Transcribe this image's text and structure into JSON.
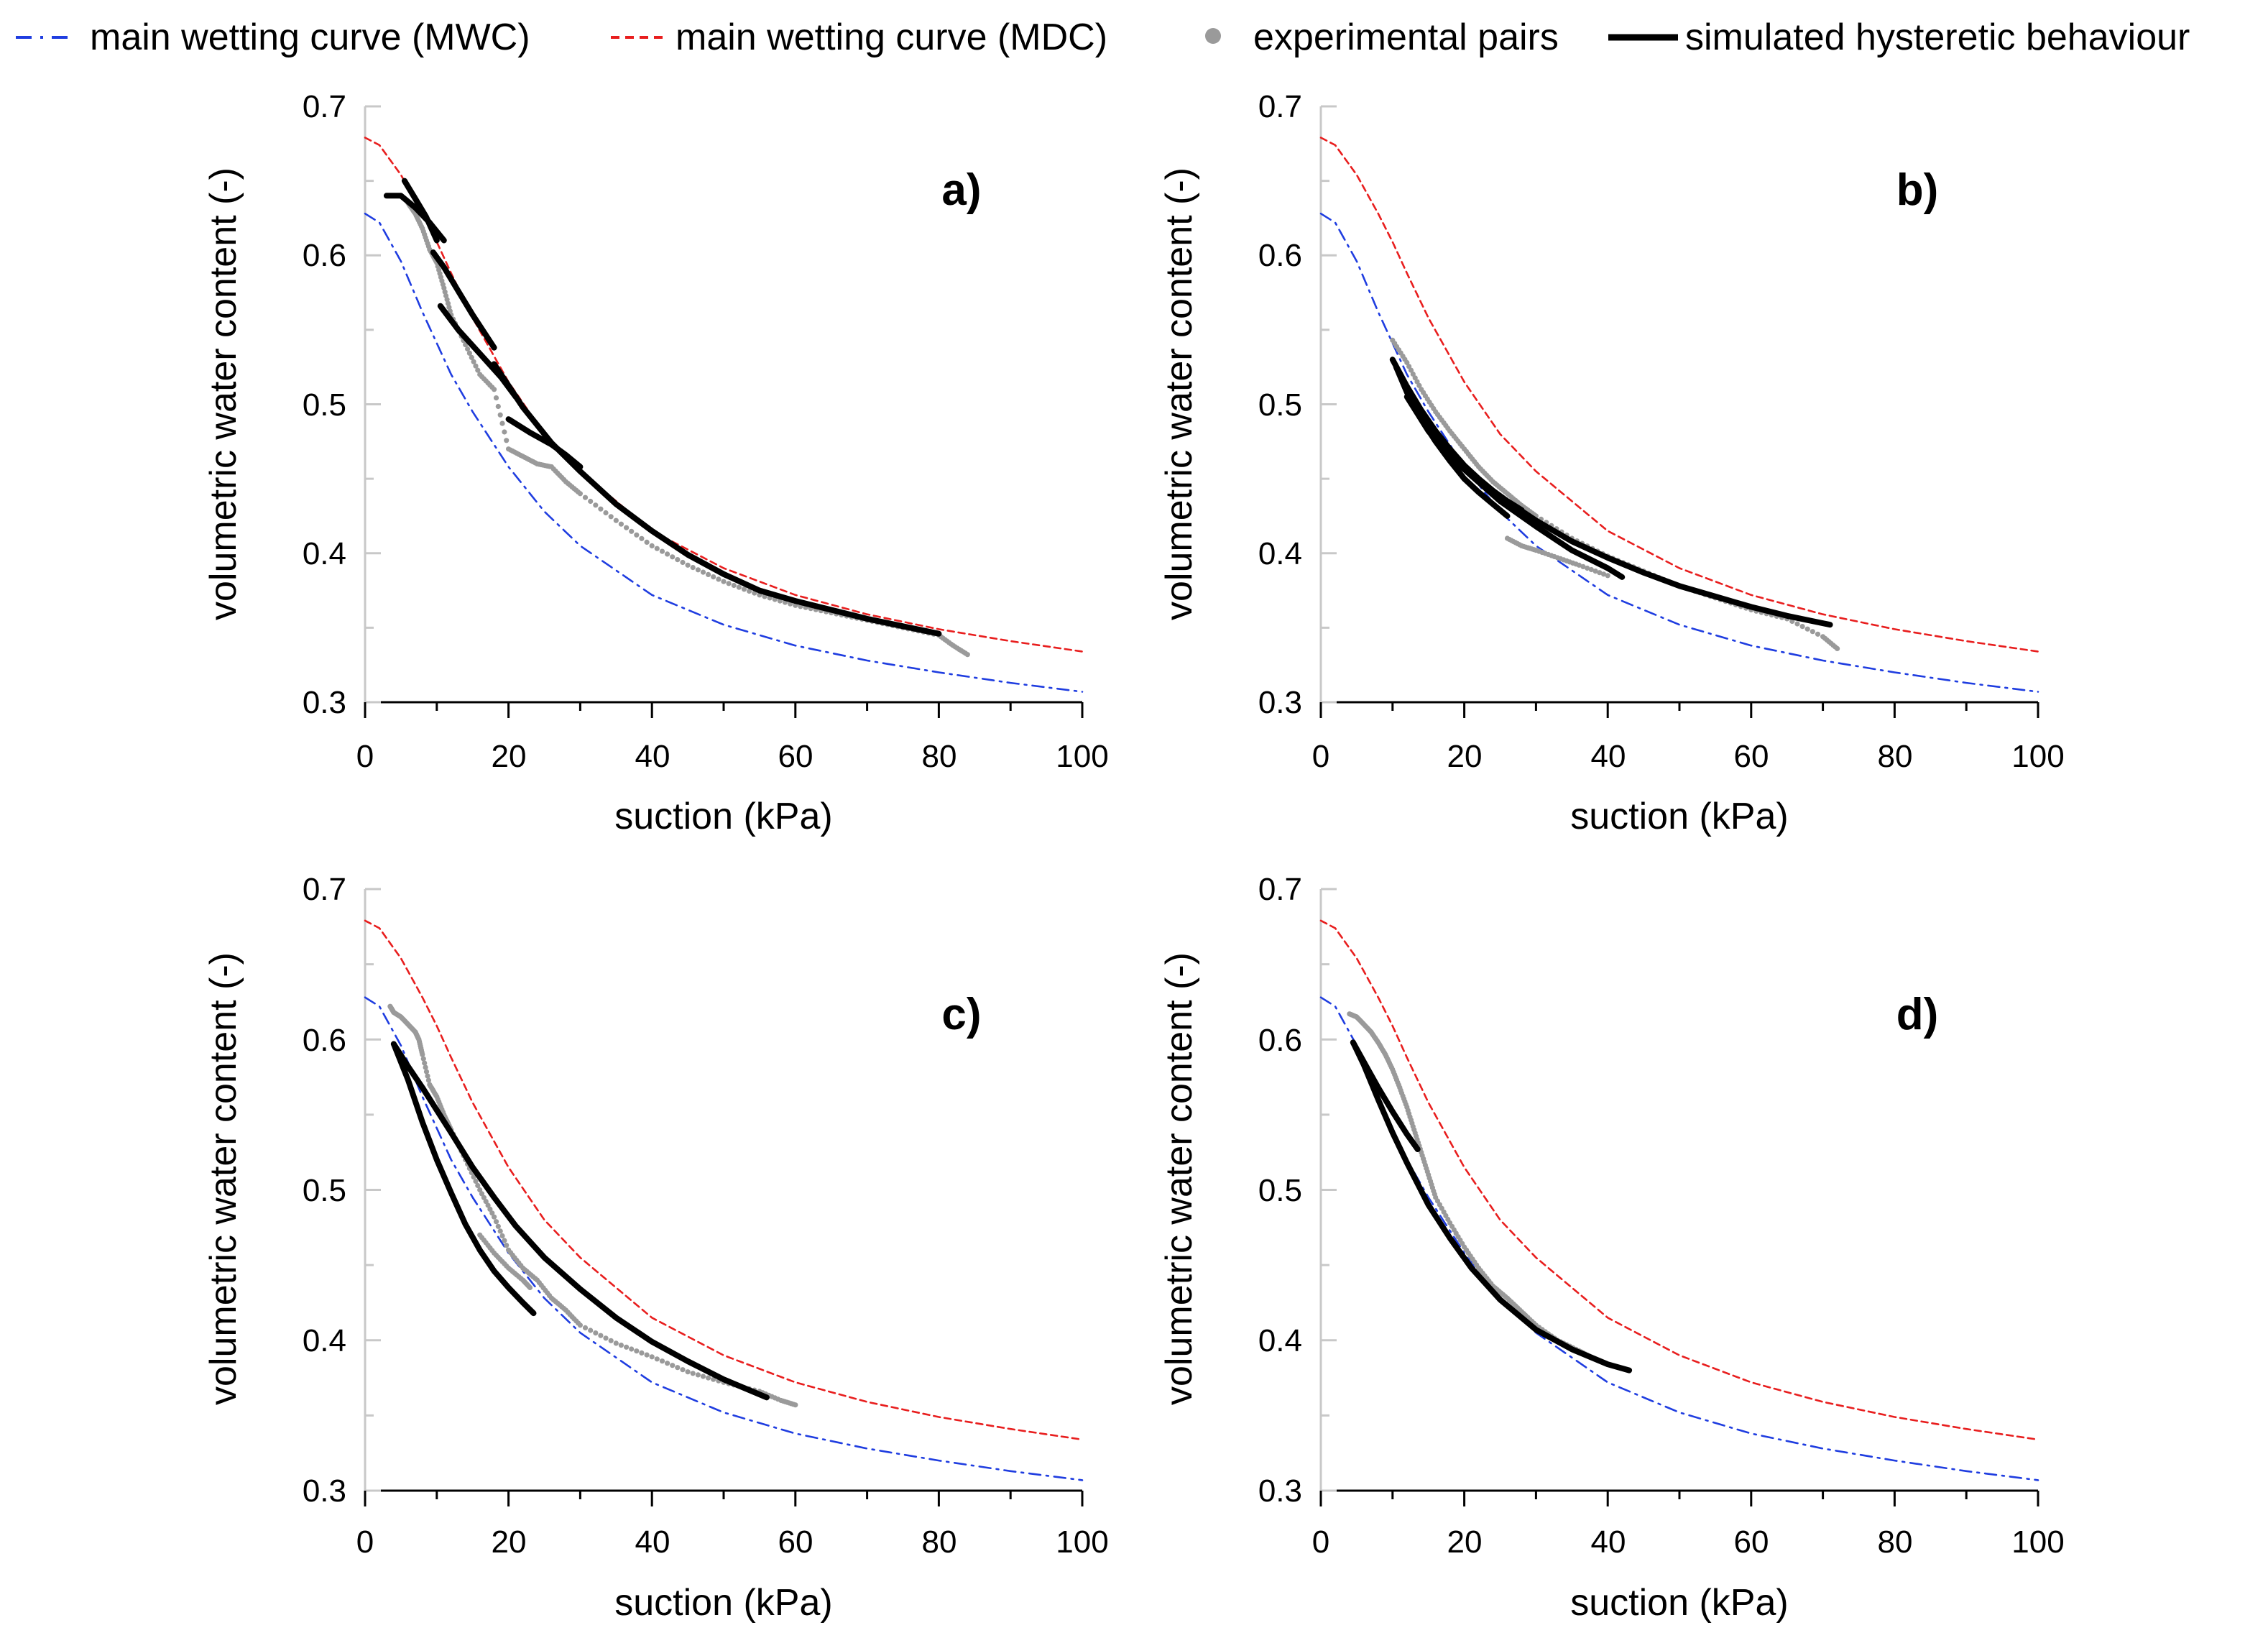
{
  "legend": {
    "mwc_label": "main wetting curve (MWC)",
    "mdc_label": "main wetting curve (MDC)",
    "exp_label": "experimental pairs",
    "sim_label": "simulated hysteretic behaviour"
  },
  "colors": {
    "mwc": "#1f3de0",
    "mdc": "#e81e1e",
    "experimental": "#9a9a9a",
    "simulated": "#000000",
    "axis": "#c8c8c8"
  },
  "chart_data": [
    {
      "type": "line",
      "panel": "a)",
      "xlabel": "suction (kPa)",
      "ylabel": "volumetric water content (-)",
      "xlim": [
        0,
        100
      ],
      "ylim": [
        0.3,
        0.7
      ],
      "xticks": [
        "0",
        "20",
        "40",
        "60",
        "80",
        "100"
      ],
      "yticks": [
        "0.3",
        "0.4",
        "0.5",
        "0.6",
        "0.7"
      ],
      "series": [
        {
          "name": "main wetting curve (MWC)",
          "kind": "mwc",
          "x": [
            0,
            2,
            5,
            8,
            10,
            12,
            15,
            20,
            25,
            30,
            40,
            50,
            60,
            70,
            80,
            90,
            100
          ],
          "y": [
            0.628,
            0.622,
            0.596,
            0.562,
            0.541,
            0.52,
            0.495,
            0.458,
            0.428,
            0.405,
            0.372,
            0.352,
            0.338,
            0.328,
            0.32,
            0.313,
            0.307
          ]
        },
        {
          "name": "main wetting curve (MDC)",
          "kind": "mdc",
          "x": [
            0,
            2,
            5,
            8,
            10,
            12,
            15,
            20,
            25,
            30,
            40,
            50,
            60,
            70,
            80,
            90,
            100
          ],
          "y": [
            0.679,
            0.674,
            0.654,
            0.628,
            0.609,
            0.588,
            0.558,
            0.515,
            0.48,
            0.455,
            0.415,
            0.39,
            0.372,
            0.359,
            0.349,
            0.341,
            0.334
          ]
        },
        {
          "name": "experimental pairs",
          "kind": "exp",
          "x": [
            6,
            7,
            8,
            9,
            10,
            11,
            12,
            14,
            16,
            18,
            20,
            22,
            24,
            26,
            28,
            30,
            35,
            40,
            45,
            50,
            55,
            60,
            65,
            70,
            75,
            80,
            82,
            84
          ],
          "y": [
            0.635,
            0.628,
            0.618,
            0.604,
            0.595,
            0.578,
            0.56,
            0.54,
            0.52,
            0.51,
            0.47,
            0.465,
            0.46,
            0.458,
            0.448,
            0.44,
            0.422,
            0.405,
            0.392,
            0.381,
            0.372,
            0.365,
            0.36,
            0.355,
            0.35,
            0.345,
            0.338,
            0.332
          ]
        },
        {
          "name": "simulated hysteretic behaviour",
          "kind": "sim",
          "x": [
            3,
            5,
            7,
            9,
            11
          ],
          "y": [
            0.64,
            0.64,
            0.632,
            0.622,
            0.61
          ]
        },
        {
          "name": "simulated hysteretic behaviour",
          "kind": "sim",
          "x": [
            5.5,
            7,
            8.5,
            10
          ],
          "y": [
            0.65,
            0.638,
            0.626,
            0.61
          ]
        },
        {
          "name": "simulated hysteretic behaviour",
          "kind": "sim",
          "x": [
            9.5,
            11,
            13,
            15,
            18
          ],
          "y": [
            0.602,
            0.592,
            0.576,
            0.56,
            0.538
          ]
        },
        {
          "name": "simulated hysteretic behaviour",
          "kind": "sim",
          "x": [
            10.5,
            13,
            16,
            19,
            21
          ],
          "y": [
            0.566,
            0.55,
            0.534,
            0.518,
            0.505
          ]
        },
        {
          "name": "simulated hysteretic behaviour",
          "kind": "sim",
          "x": [
            20,
            23,
            26,
            28,
            30
          ],
          "y": [
            0.49,
            0.481,
            0.473,
            0.466,
            0.458
          ]
        },
        {
          "name": "simulated hysteretic behaviour",
          "kind": "sim",
          "x": [
            18,
            22,
            26,
            30,
            35,
            40,
            45,
            50,
            55,
            60,
            65,
            70,
            75,
            80
          ],
          "y": [
            0.527,
            0.498,
            0.474,
            0.455,
            0.433,
            0.415,
            0.399,
            0.386,
            0.375,
            0.368,
            0.362,
            0.356,
            0.351,
            0.346
          ]
        }
      ]
    },
    {
      "type": "line",
      "panel": "b)",
      "xlabel": "suction (kPa)",
      "ylabel": "volumetric water content (-)",
      "xlim": [
        0,
        100
      ],
      "ylim": [
        0.3,
        0.7
      ],
      "xticks": [
        "0",
        "20",
        "40",
        "60",
        "80",
        "100"
      ],
      "yticks": [
        "0.3",
        "0.4",
        "0.5",
        "0.6",
        "0.7"
      ],
      "series": [
        {
          "name": "main wetting curve (MWC)",
          "kind": "mwc",
          "x": [
            0,
            2,
            5,
            8,
            10,
            12,
            15,
            20,
            25,
            30,
            40,
            50,
            60,
            70,
            80,
            90,
            100
          ],
          "y": [
            0.628,
            0.622,
            0.596,
            0.562,
            0.541,
            0.52,
            0.495,
            0.458,
            0.428,
            0.405,
            0.372,
            0.352,
            0.338,
            0.328,
            0.32,
            0.313,
            0.307
          ]
        },
        {
          "name": "main wetting curve (MDC)",
          "kind": "mdc",
          "x": [
            0,
            2,
            5,
            8,
            10,
            12,
            15,
            20,
            25,
            30,
            40,
            50,
            60,
            70,
            80,
            90,
            100
          ],
          "y": [
            0.679,
            0.674,
            0.654,
            0.628,
            0.609,
            0.588,
            0.558,
            0.515,
            0.48,
            0.455,
            0.415,
            0.39,
            0.372,
            0.359,
            0.349,
            0.341,
            0.334
          ]
        },
        {
          "name": "experimental pairs",
          "kind": "exp",
          "x": [
            10,
            12,
            14,
            16,
            18,
            20,
            22,
            24,
            26,
            28,
            30,
            35,
            40,
            45,
            50,
            55,
            60,
            65,
            70,
            72
          ],
          "y": [
            0.543,
            0.528,
            0.51,
            0.495,
            0.482,
            0.47,
            0.458,
            0.448,
            0.44,
            0.432,
            0.425,
            0.41,
            0.398,
            0.388,
            0.378,
            0.37,
            0.362,
            0.356,
            0.344,
            0.336
          ]
        },
        {
          "name": "experimental pairs",
          "kind": "exp",
          "x": [
            26,
            28,
            30,
            33,
            36,
            40
          ],
          "y": [
            0.41,
            0.405,
            0.402,
            0.397,
            0.392,
            0.385
          ]
        },
        {
          "name": "simulated hysteretic behaviour",
          "kind": "sim",
          "x": [
            10,
            12,
            14,
            16,
            18,
            20,
            22,
            24,
            26,
            28
          ],
          "y": [
            0.53,
            0.512,
            0.496,
            0.482,
            0.47,
            0.459,
            0.45,
            0.442,
            0.435,
            0.429
          ]
        },
        {
          "name": "simulated hysteretic behaviour",
          "kind": "sim",
          "x": [
            10.5,
            12,
            14,
            16,
            18,
            20,
            22,
            24,
            26
          ],
          "y": [
            0.525,
            0.508,
            0.49,
            0.475,
            0.462,
            0.45,
            0.441,
            0.433,
            0.425
          ]
        },
        {
          "name": "simulated hysteretic behaviour",
          "kind": "sim",
          "x": [
            12,
            15,
            18,
            21,
            25,
            30,
            35,
            40,
            42
          ],
          "y": [
            0.51,
            0.488,
            0.468,
            0.452,
            0.435,
            0.418,
            0.402,
            0.39,
            0.384
          ]
        },
        {
          "name": "simulated hysteretic behaviour",
          "kind": "sim",
          "x": [
            12,
            15,
            18,
            21,
            25,
            30,
            35,
            40,
            45,
            50,
            55,
            60,
            65,
            71
          ],
          "y": [
            0.505,
            0.482,
            0.465,
            0.452,
            0.438,
            0.422,
            0.408,
            0.397,
            0.387,
            0.378,
            0.371,
            0.364,
            0.358,
            0.352
          ]
        }
      ]
    },
    {
      "type": "line",
      "panel": "c)",
      "xlabel": "suction (kPa)",
      "ylabel": "volumetric water content (-)",
      "xlim": [
        0,
        100
      ],
      "ylim": [
        0.3,
        0.7
      ],
      "xticks": [
        "0",
        "20",
        "40",
        "60",
        "80",
        "100"
      ],
      "yticks": [
        "0.3",
        "0.4",
        "0.5",
        "0.6",
        "0.7"
      ],
      "series": [
        {
          "name": "main wetting curve (MWC)",
          "kind": "mwc",
          "x": [
            0,
            2,
            5,
            8,
            10,
            12,
            15,
            20,
            25,
            30,
            40,
            50,
            60,
            70,
            80,
            90,
            100
          ],
          "y": [
            0.628,
            0.622,
            0.596,
            0.562,
            0.541,
            0.52,
            0.495,
            0.458,
            0.428,
            0.405,
            0.372,
            0.352,
            0.338,
            0.328,
            0.32,
            0.313,
            0.307
          ]
        },
        {
          "name": "main wetting curve (MDC)",
          "kind": "mdc",
          "x": [
            0,
            2,
            5,
            8,
            10,
            12,
            15,
            20,
            25,
            30,
            40,
            50,
            60,
            70,
            80,
            90,
            100
          ],
          "y": [
            0.679,
            0.674,
            0.654,
            0.628,
            0.609,
            0.588,
            0.558,
            0.515,
            0.48,
            0.455,
            0.415,
            0.39,
            0.372,
            0.359,
            0.349,
            0.341,
            0.334
          ]
        },
        {
          "name": "experimental pairs",
          "kind": "exp",
          "x": [
            3.5,
            4,
            5,
            6,
            7,
            7.5,
            8,
            9,
            10,
            11,
            12,
            14,
            16,
            18,
            20,
            22,
            24,
            26,
            28,
            30,
            35,
            40,
            45,
            50,
            55,
            58,
            60
          ],
          "y": [
            0.622,
            0.618,
            0.615,
            0.61,
            0.605,
            0.6,
            0.59,
            0.57,
            0.562,
            0.55,
            0.54,
            0.52,
            0.5,
            0.482,
            0.46,
            0.448,
            0.44,
            0.428,
            0.42,
            0.41,
            0.398,
            0.389,
            0.379,
            0.372,
            0.366,
            0.36,
            0.357
          ]
        },
        {
          "name": "experimental pairs",
          "kind": "exp",
          "x": [
            16,
            18,
            20,
            22,
            23
          ],
          "y": [
            0.47,
            0.458,
            0.448,
            0.44,
            0.435
          ]
        },
        {
          "name": "simulated hysteretic behaviour",
          "kind": "sim",
          "x": [
            4,
            6,
            8,
            10,
            12,
            14,
            16,
            18,
            20,
            22,
            23.5
          ],
          "y": [
            0.597,
            0.573,
            0.545,
            0.52,
            0.498,
            0.477,
            0.46,
            0.446,
            0.435,
            0.425,
            0.418
          ]
        },
        {
          "name": "simulated hysteretic behaviour",
          "kind": "sim",
          "x": [
            4,
            6,
            8,
            10,
            12,
            15,
            18,
            21,
            25,
            30,
            35,
            40,
            45,
            50,
            56
          ],
          "y": [
            0.597,
            0.582,
            0.568,
            0.553,
            0.538,
            0.515,
            0.495,
            0.476,
            0.455,
            0.434,
            0.415,
            0.399,
            0.386,
            0.374,
            0.362
          ]
        }
      ]
    },
    {
      "type": "line",
      "panel": "d)",
      "xlabel": "suction (kPa)",
      "ylabel": "volumetric water content (-)",
      "xlim": [
        0,
        100
      ],
      "ylim": [
        0.3,
        0.7
      ],
      "xticks": [
        "0",
        "20",
        "40",
        "60",
        "80",
        "100"
      ],
      "yticks": [
        "0.3",
        "0.4",
        "0.5",
        "0.6",
        "0.7"
      ],
      "series": [
        {
          "name": "main wetting curve (MWC)",
          "kind": "mwc",
          "x": [
            0,
            2,
            5,
            8,
            10,
            12,
            15,
            20,
            25,
            30,
            40,
            50,
            60,
            70,
            80,
            90,
            100
          ],
          "y": [
            0.628,
            0.622,
            0.596,
            0.562,
            0.541,
            0.52,
            0.495,
            0.458,
            0.428,
            0.405,
            0.372,
            0.352,
            0.338,
            0.328,
            0.32,
            0.313,
            0.307
          ]
        },
        {
          "name": "main wetting curve (MDC)",
          "kind": "mdc",
          "x": [
            0,
            2,
            5,
            8,
            10,
            12,
            15,
            20,
            25,
            30,
            40,
            50,
            60,
            70,
            80,
            90,
            100
          ],
          "y": [
            0.679,
            0.674,
            0.654,
            0.628,
            0.609,
            0.588,
            0.558,
            0.515,
            0.48,
            0.455,
            0.415,
            0.39,
            0.372,
            0.359,
            0.349,
            0.341,
            0.334
          ]
        },
        {
          "name": "experimental pairs",
          "kind": "exp",
          "x": [
            4,
            5,
            6,
            7,
            8,
            9,
            10,
            11,
            12,
            13,
            14,
            15,
            16,
            18,
            20,
            22,
            24,
            26,
            28,
            30,
            33,
            36,
            38,
            40
          ],
          "y": [
            0.617,
            0.615,
            0.61,
            0.605,
            0.598,
            0.59,
            0.58,
            0.568,
            0.555,
            0.54,
            0.525,
            0.51,
            0.495,
            0.478,
            0.462,
            0.448,
            0.436,
            0.428,
            0.419,
            0.41,
            0.4,
            0.393,
            0.388,
            0.384
          ]
        },
        {
          "name": "simulated hysteretic behaviour",
          "kind": "sim",
          "x": [
            4.5,
            6,
            8,
            10,
            12,
            13.5
          ],
          "y": [
            0.598,
            0.585,
            0.568,
            0.552,
            0.537,
            0.527
          ]
        },
        {
          "name": "simulated hysteretic behaviour",
          "kind": "sim",
          "x": [
            4.5,
            6,
            8,
            10,
            12,
            15,
            18,
            21,
            25,
            30,
            35,
            40,
            43
          ],
          "y": [
            0.598,
            0.583,
            0.56,
            0.538,
            0.518,
            0.49,
            0.468,
            0.448,
            0.427,
            0.407,
            0.394,
            0.384,
            0.38
          ]
        }
      ]
    }
  ]
}
